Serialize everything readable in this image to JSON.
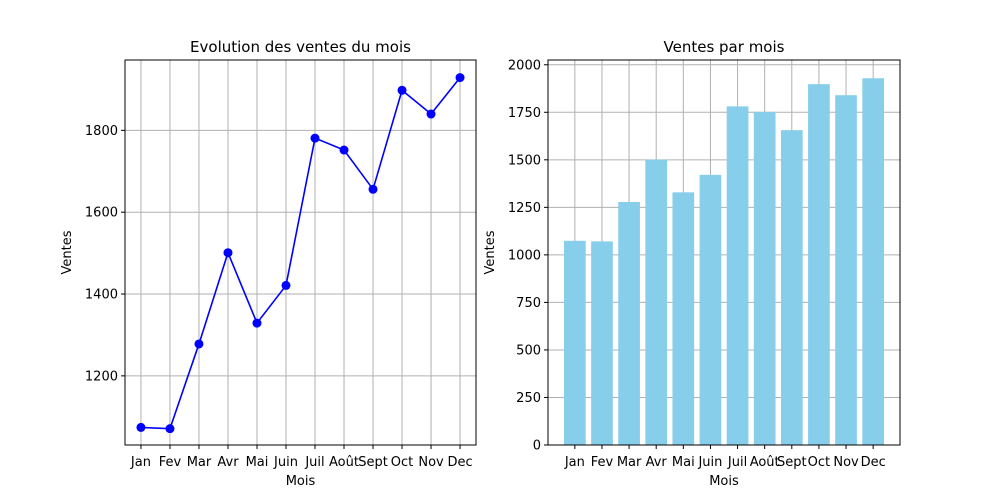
{
  "chart_data": [
    {
      "type": "line",
      "title": "Evolution des ventes du mois",
      "xlabel": "Mois",
      "ylabel": "Ventes",
      "categories": [
        "Jan",
        "Fev",
        "Mar",
        "Avr",
        "Mai",
        "Juin",
        "Juil",
        "Août",
        "Sept",
        "Oct",
        "Nov",
        "Dec"
      ],
      "values": [
        1074,
        1071,
        1278,
        1501,
        1329,
        1421,
        1781,
        1752,
        1656,
        1898,
        1840,
        1929
      ],
      "yticks": [
        1200,
        1400,
        1600,
        1800
      ],
      "ylim": [
        1031,
        1972
      ],
      "grid": true,
      "color": "#0000ff",
      "marker": "circle"
    },
    {
      "type": "bar",
      "title": "Ventes par mois",
      "xlabel": "Mois",
      "ylabel": "Ventes",
      "categories": [
        "Jan",
        "Fev",
        "Mar",
        "Avr",
        "Mai",
        "Juin",
        "Juil",
        "Août",
        "Sept",
        "Oct",
        "Nov",
        "Dec"
      ],
      "values": [
        1074,
        1071,
        1278,
        1501,
        1329,
        1421,
        1781,
        1752,
        1656,
        1898,
        1840,
        1929
      ],
      "yticks": [
        0,
        250,
        500,
        750,
        1000,
        1250,
        1500,
        1750,
        2000
      ],
      "ylim": [
        0,
        2025
      ],
      "grid": true,
      "color": "#87ceeb"
    }
  ]
}
